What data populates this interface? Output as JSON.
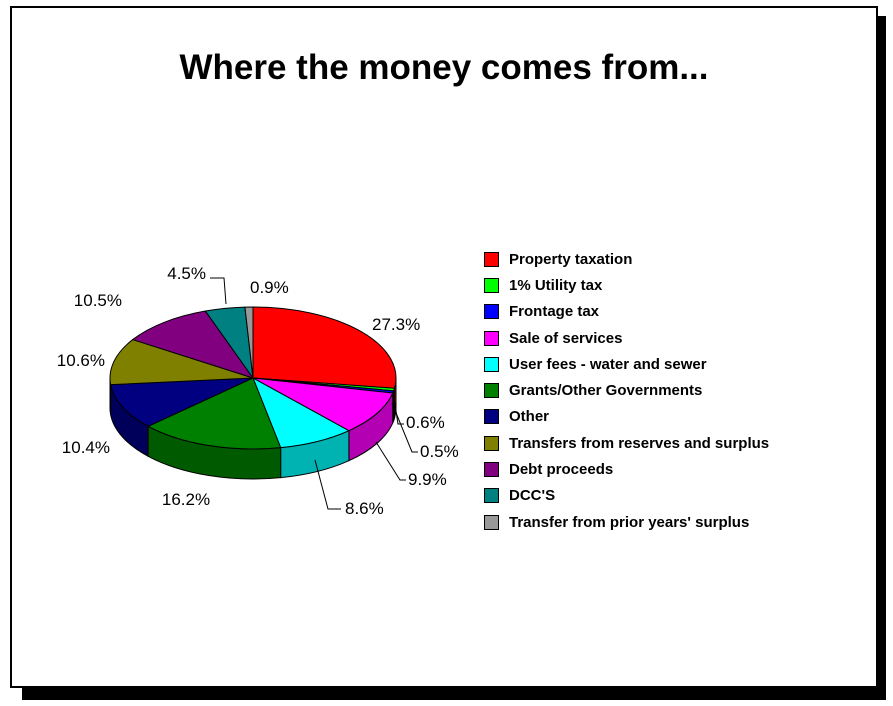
{
  "chart_data": {
    "type": "pie",
    "title": "Where the money comes from...",
    "slices": [
      {
        "label": "Property taxation",
        "value": 27.3,
        "value_label": "27.3%",
        "color": "#ff0000"
      },
      {
        "label": "1% Utility tax",
        "value": 0.6,
        "value_label": "0.6%",
        "color": "#00ff00"
      },
      {
        "label": "Frontage tax",
        "value": 0.5,
        "value_label": "0.5%",
        "color": "#0000ff"
      },
      {
        "label": "Sale of services",
        "value": 9.9,
        "value_label": "9.9%",
        "color": "#ff00ff"
      },
      {
        "label": "User fees - water and sewer",
        "value": 8.6,
        "value_label": "8.6%",
        "color": "#00ffff"
      },
      {
        "label": "Grants/Other Governments",
        "value": 16.2,
        "value_label": "16.2%",
        "color": "#008000"
      },
      {
        "label": "Other",
        "value": 10.4,
        "value_label": "10.4%",
        "color": "#000080"
      },
      {
        "label": "Transfers from reserves and surplus",
        "value": 10.6,
        "value_label": "10.6%",
        "color": "#808000"
      },
      {
        "label": "Debt proceeds",
        "value": 10.5,
        "value_label": "10.5%",
        "color": "#800080"
      },
      {
        "label": "DCC'S",
        "value": 4.5,
        "value_label": "4.5%",
        "color": "#008080"
      },
      {
        "label": "Transfer from prior years' surplus",
        "value": 0.9,
        "value_label": "0.9%",
        "color": "#999999"
      }
    ],
    "legend_position": "right",
    "style": "3d-pie"
  }
}
